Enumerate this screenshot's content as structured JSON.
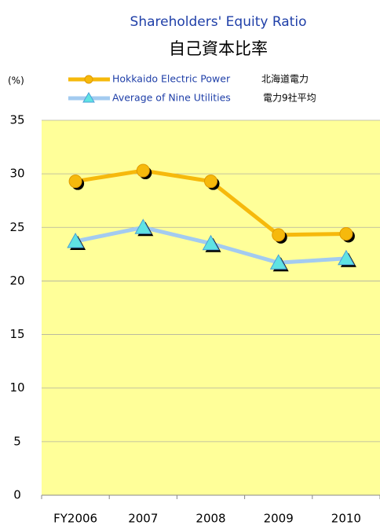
{
  "chart_data": {
    "type": "line",
    "title": "Shareholders' Equity Ratio",
    "subtitle": "自己資本比率",
    "y_label": "(%)",
    "categories": [
      "FY2006",
      "2007",
      "2008",
      "2009",
      "2010"
    ],
    "series": [
      {
        "name": "Hokkaido Electric Power",
        "name_ja": "北海道電力",
        "color": "#f6b90c",
        "marker": "circle",
        "values": [
          29.3,
          30.3,
          29.3,
          24.3,
          24.4
        ]
      },
      {
        "name": "Average of Nine Utilities",
        "name_ja": "電力9社平均",
        "color": "#a3cbf0",
        "marker": "triangle",
        "values": [
          23.7,
          25.0,
          23.5,
          21.7,
          22.1
        ]
      }
    ],
    "ylim": [
      0,
      35
    ],
    "yticks": [
      0,
      5,
      10,
      15,
      20,
      25,
      30,
      35
    ],
    "grid": true
  }
}
